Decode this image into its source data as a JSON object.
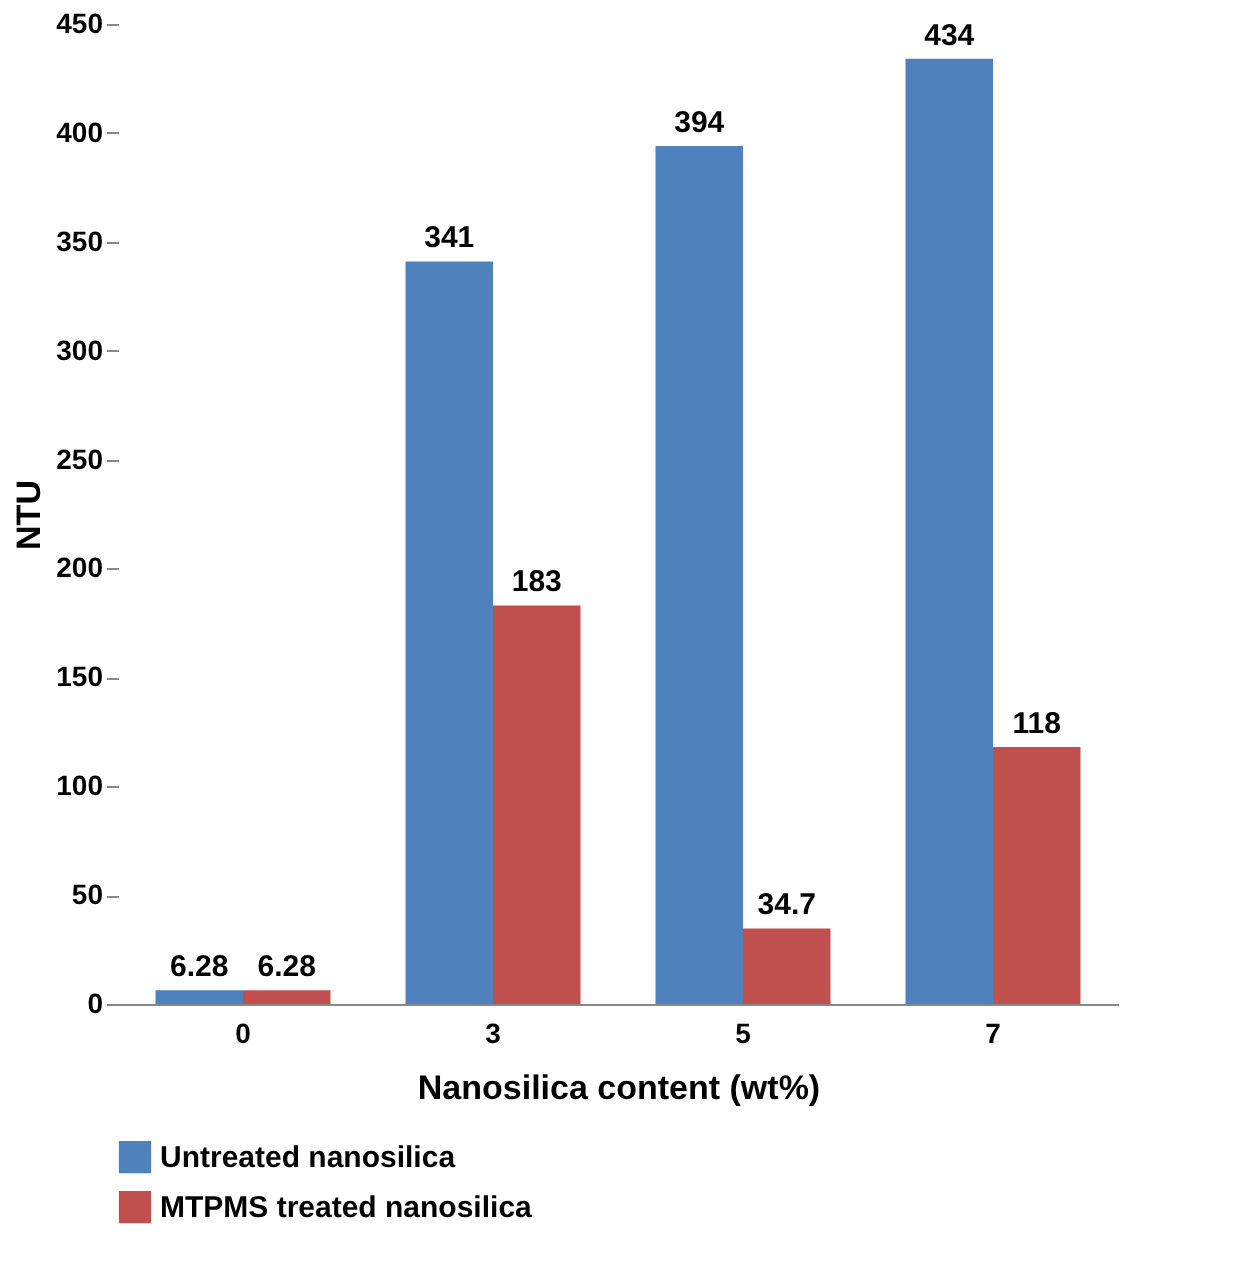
{
  "chart_data": {
    "type": "bar",
    "xlabel": "Nanosilica content (wt%)",
    "ylabel": "NTU",
    "categories": [
      "0",
      "3",
      "5",
      "7"
    ],
    "series": [
      {
        "name": "Untreated nanosilica",
        "color": "#4f81bd",
        "values": [
          6.28,
          341,
          394,
          434
        ]
      },
      {
        "name": "MTPMS treated nanosilica",
        "color": "#c0504d",
        "values": [
          6.28,
          183,
          34.7,
          118
        ]
      }
    ],
    "ylim": [
      0,
      450
    ],
    "yticks": [
      0,
      50,
      100,
      150,
      200,
      250,
      300,
      350,
      400,
      450
    ],
    "grid": false,
    "legend": "bottom",
    "data_labels": true
  }
}
